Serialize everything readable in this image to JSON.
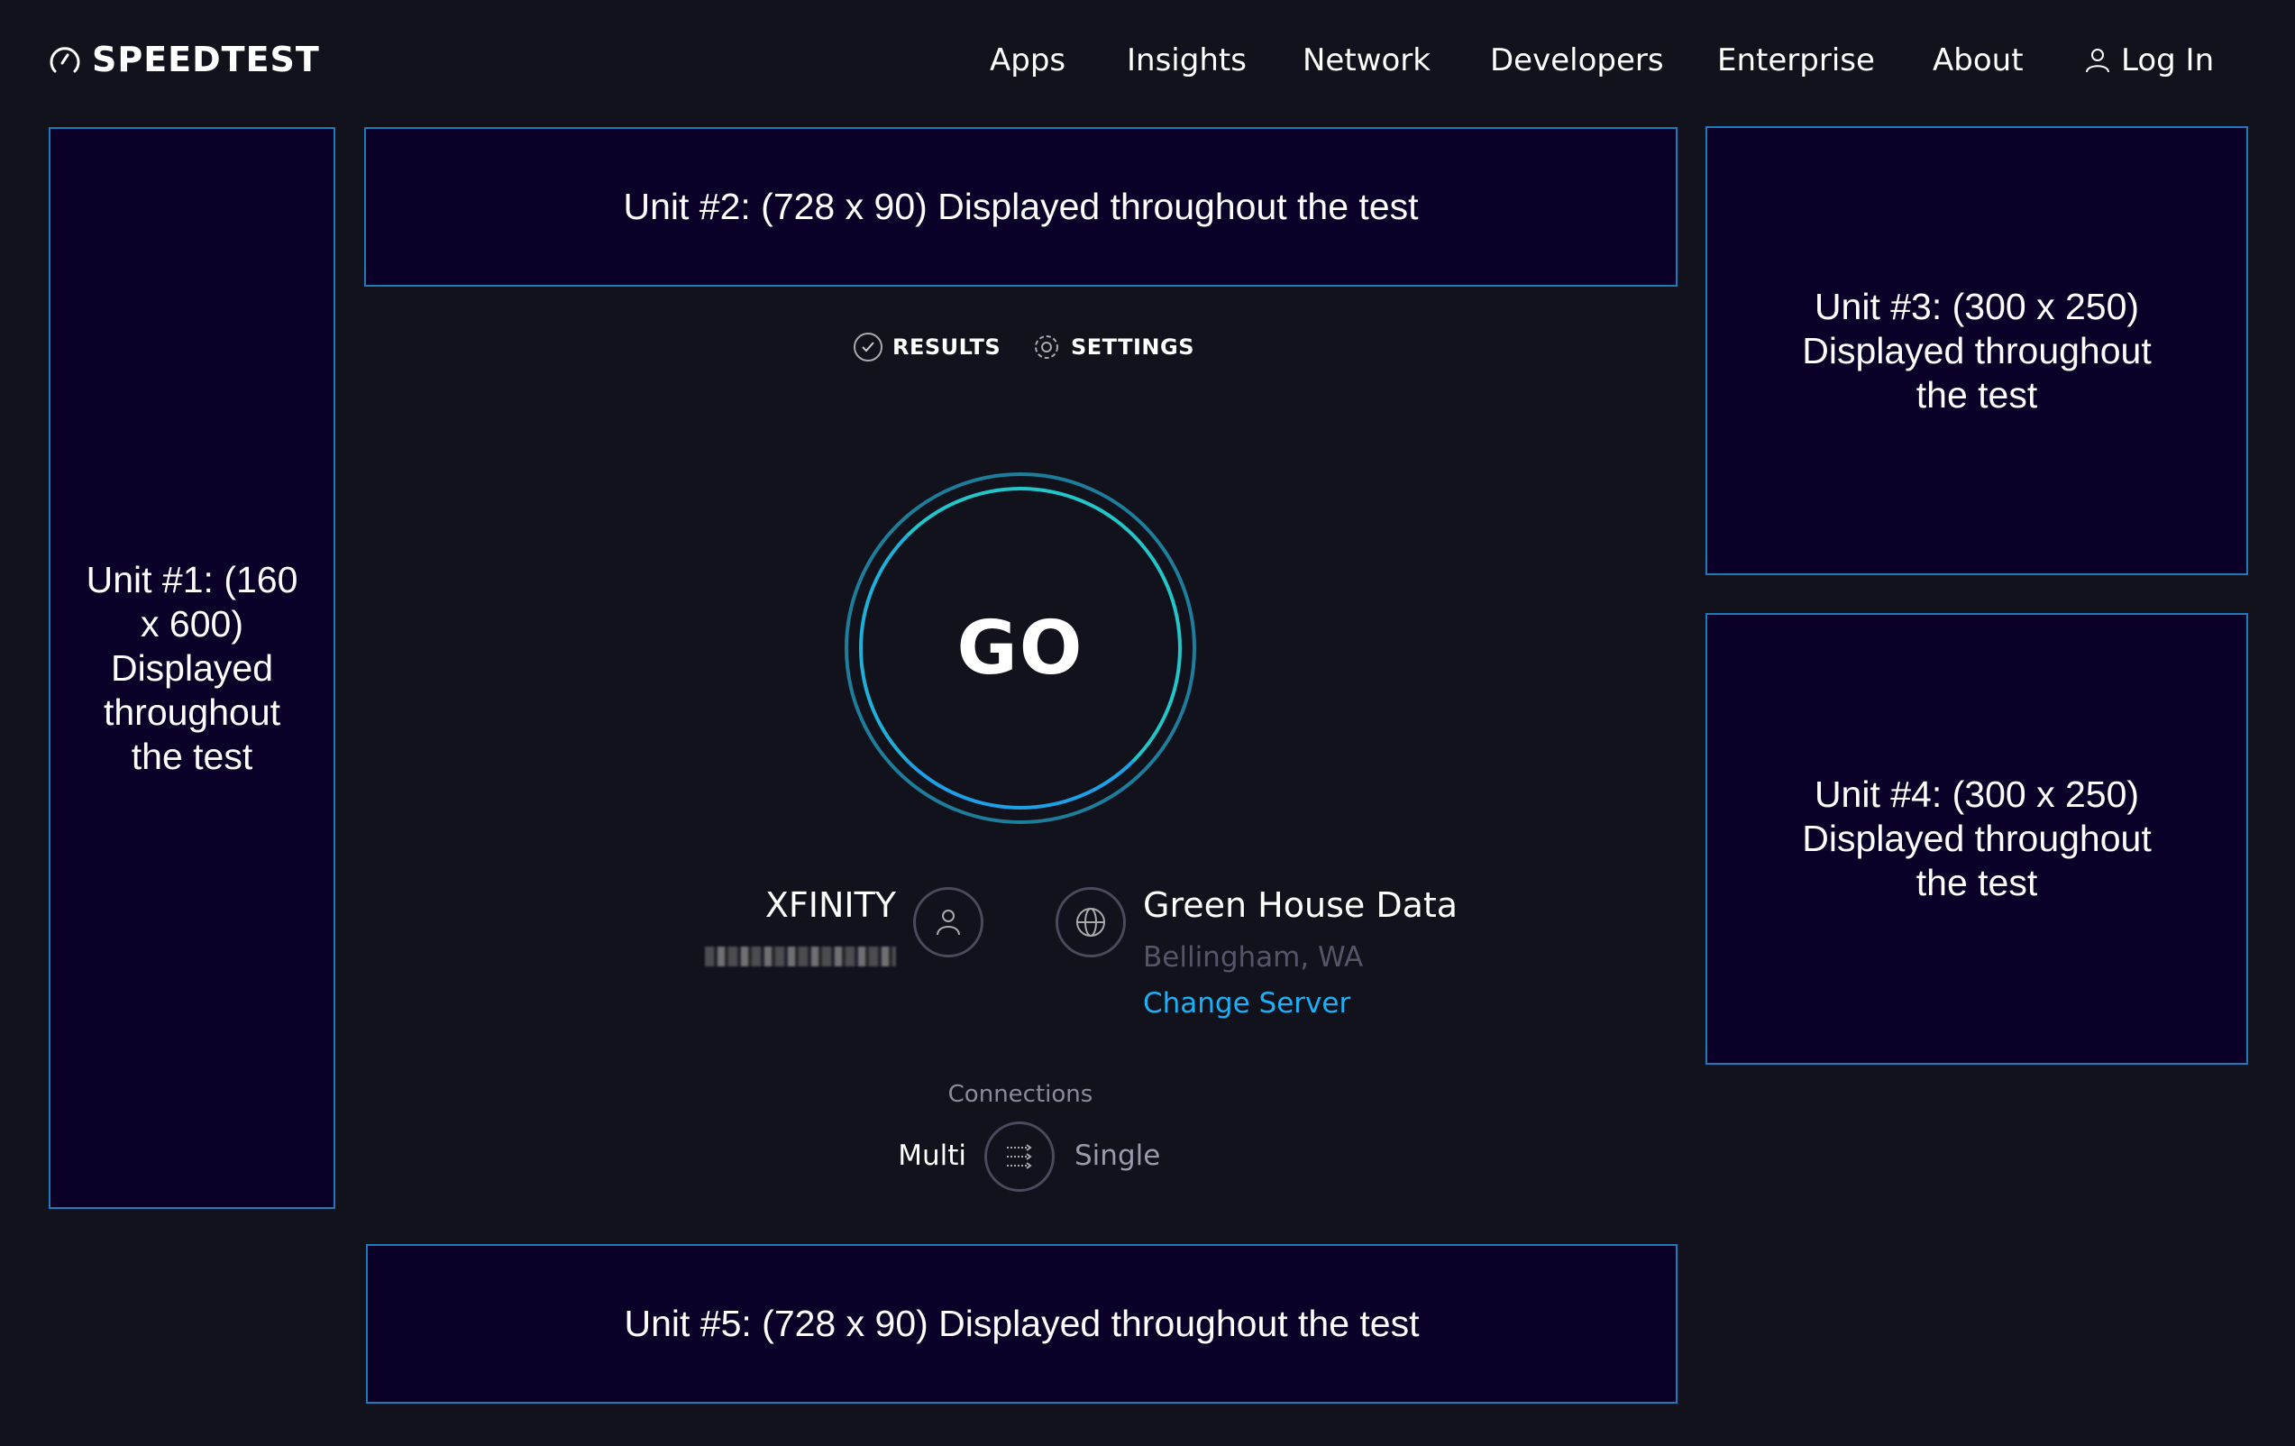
{
  "header": {
    "logo_text": "SPEEDTEST",
    "nav": [
      "Apps",
      "Insights",
      "Network",
      "Developers",
      "Enterprise",
      "About"
    ],
    "login_label": "Log In"
  },
  "ads": {
    "unit1": "Unit #1: (160 x 600) Displayed throughout the test",
    "unit2": "Unit #2: (728 x 90) Displayed throughout the test",
    "unit3": "Unit #3: (300 x 250) Displayed throughout the test",
    "unit4": "Unit #4: (300 x 250) Displayed throughout the test",
    "unit5": "Unit #5: (728 x 90) Displayed throughout the test"
  },
  "tabs": {
    "results": "RESULTS",
    "settings": "SETTINGS"
  },
  "go_label": "GO",
  "isp": {
    "name": "XFINITY",
    "icon": "user-icon"
  },
  "server": {
    "name": "Green House Data",
    "location": "Bellingham, WA",
    "change_label": "Change Server",
    "icon": "globe-icon"
  },
  "connections": {
    "label": "Connections",
    "multi": "Multi",
    "single": "Single",
    "selected": "Multi"
  },
  "colors": {
    "background": "#11121c",
    "accent": "#1cb0f6",
    "ad_border": "#1e7ab8",
    "ad_bg": "#0b0128"
  }
}
